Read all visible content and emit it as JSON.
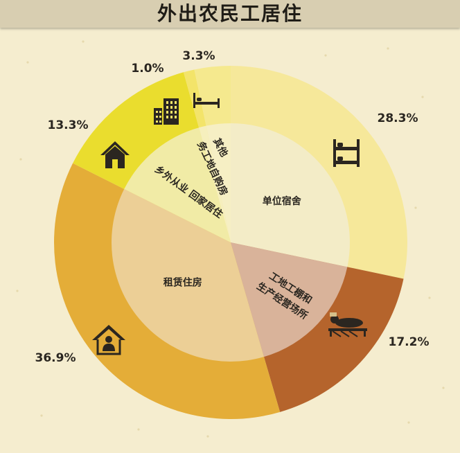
{
  "chart_data": {
    "type": "pie",
    "title": "外出农民工居住",
    "slices": [
      {
        "label": "单位宿舍",
        "value": 28.3,
        "value_label": "28.3%",
        "color": "#f6e89a",
        "inner_color": "#f3ecc7",
        "icon": "bunk-bed-icon"
      },
      {
        "label": "工地工棚和生产经营场所",
        "label_lines": [
          "工地工棚和",
          "生产经营场所"
        ],
        "value": 17.2,
        "value_label": "17.2%",
        "color": "#b5642c",
        "inner_color": "#d9b39a",
        "icon": "worker-resting-icon"
      },
      {
        "label": "租赁住房",
        "value": 36.9,
        "value_label": "36.9%",
        "color": "#e4ad38",
        "inner_color": "#eccf96",
        "icon": "house-person-icon"
      },
      {
        "label": "乡外从业 回家居住",
        "value": 13.3,
        "value_label": "13.3%",
        "color": "#eadd2e",
        "inner_color": "#f1eba6",
        "icon": "house-icon"
      },
      {
        "label": "务工地自购房",
        "value": 1.0,
        "value_label": "1.0%",
        "color": "#f3e46a",
        "inner_color": "#f6efbd",
        "icon": "apartment-building-icon"
      },
      {
        "label": "其他",
        "value": 3.3,
        "value_label": "3.3%",
        "color": "#f5e98e",
        "inner_color": "#f6efc4",
        "icon": "single-bed-icon"
      }
    ]
  }
}
